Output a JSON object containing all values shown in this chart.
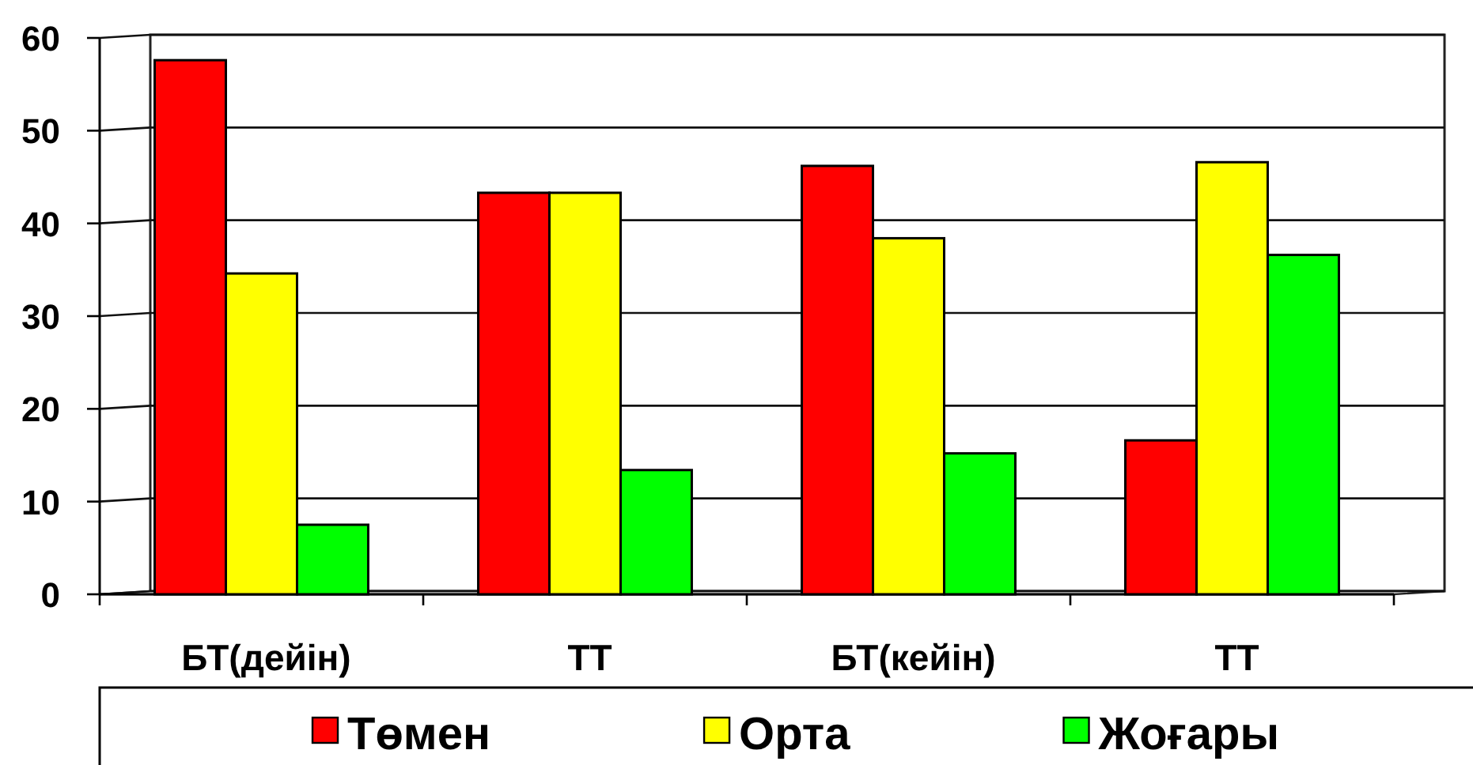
{
  "chart_data": {
    "type": "bar",
    "categories": [
      "БТ(дейін)",
      "ТТ",
      "БТ(кейін)",
      "ТТ"
    ],
    "series": [
      {
        "name": "Төмен",
        "color": "#ff0000",
        "values": [
          57.6,
          43.3,
          46.2,
          16.6
        ]
      },
      {
        "name": "Орта",
        "color": "#ffff00",
        "values": [
          34.6,
          43.3,
          38.4,
          46.6
        ]
      },
      {
        "name": "Жоғары",
        "color": "#00ff00",
        "values": [
          7.5,
          13.4,
          15.2,
          36.6
        ]
      }
    ],
    "ylim": [
      0,
      60
    ],
    "yticks": [
      0,
      10,
      20,
      30,
      40,
      50,
      60
    ],
    "grid": "y",
    "legend": "bottom"
  }
}
